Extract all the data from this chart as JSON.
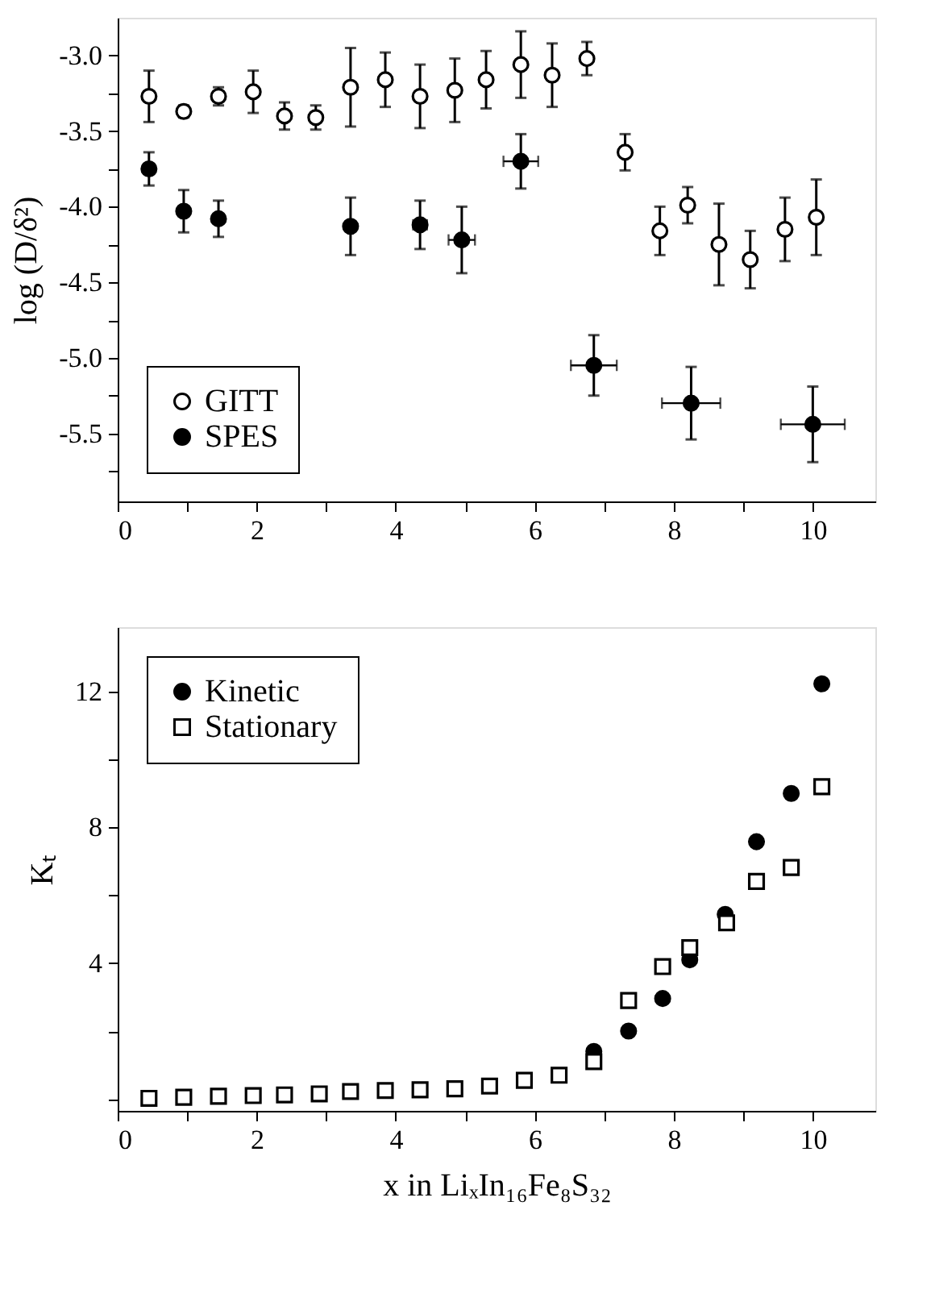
{
  "chart_data": [
    {
      "type": "scatter",
      "ylabel": "log (D/δ²)",
      "xlim": [
        0,
        10.9
      ],
      "ylim": [
        -5.95,
        -2.75
      ],
      "xticks": [
        0,
        {
          "value": 1,
          "label": null
        },
        2,
        {
          "value": 3,
          "label": null
        },
        4,
        {
          "value": 5,
          "label": null
        },
        6,
        {
          "value": 7,
          "label": null
        },
        8,
        {
          "value": 9,
          "label": null
        },
        10
      ],
      "yticks": [
        {
          "value": -3,
          "label": "-3.0"
        },
        {
          "value": -3.25,
          "label": null
        },
        {
          "value": -3.5,
          "label": "-3.5"
        },
        {
          "value": -3.75,
          "label": null
        },
        {
          "value": -4,
          "label": "-4.0"
        },
        {
          "value": -4.25,
          "label": null
        },
        {
          "value": -4.5,
          "label": "-4.5"
        },
        {
          "value": -4.75,
          "label": null
        },
        {
          "value": -5,
          "label": "-5.0"
        },
        {
          "value": -5.25,
          "label": null
        },
        {
          "value": -5.5,
          "label": "-5.5"
        },
        {
          "value": -5.75,
          "label": null
        }
      ],
      "legend": "bottom left",
      "grid": false,
      "series": [
        {
          "name": "GITT",
          "color": "#000000",
          "marker": "circle",
          "x": [
            0.45,
            0.95,
            1.45,
            1.95,
            2.4,
            2.85,
            3.35,
            3.85,
            4.35,
            4.85,
            5.3,
            5.8,
            6.25,
            6.75,
            7.3,
            7.8,
            8.2,
            8.65,
            9.1,
            9.6,
            10.05
          ],
          "values": [
            -3.27,
            -3.37,
            -3.27,
            -3.24,
            -3.4,
            -3.41,
            -3.21,
            -3.16,
            -3.27,
            -3.23,
            -3.16,
            -3.06,
            -3.13,
            -3.02,
            -3.64,
            -4.16,
            -3.99,
            -4.25,
            -4.35,
            -4.15,
            -4.07
          ],
          "errors": [
            0.17,
            0.04,
            0.06,
            0.14,
            0.09,
            0.08,
            0.26,
            0.18,
            0.21,
            0.21,
            0.19,
            0.22,
            0.21,
            0.11,
            0.12,
            0.16,
            0.12,
            0.27,
            0.19,
            0.21,
            0.25
          ]
        },
        {
          "name": "SPES",
          "color": "#000000",
          "marker": "circle",
          "x": [
            0.45,
            0.95,
            1.45,
            3.35,
            4.35,
            4.95,
            5.8,
            6.85,
            8.25,
            10.0
          ],
          "values": [
            -3.75,
            -4.03,
            -4.08,
            -4.13,
            -4.12,
            -4.22,
            -3.7,
            -5.05,
            -5.3,
            -5.44
          ],
          "errors": [
            0.11,
            0.14,
            0.12,
            0.19,
            0.16,
            0.22,
            0.18,
            0.2,
            0.24,
            0.25
          ],
          "xerrors": [
            null,
            null,
            null,
            null,
            0.1,
            0.19,
            0.25,
            0.33,
            0.42,
            0.46
          ]
        }
      ]
    },
    {
      "type": "scatter",
      "xlabel": "x in LiₓIn₁₆Fe₈S₃₂",
      "ylabel": "Kₜ",
      "xlim": [
        0,
        10.9
      ],
      "ylim": [
        -0.35,
        13.9
      ],
      "xticks": [
        0,
        {
          "value": 1,
          "label": null
        },
        2,
        {
          "value": 3,
          "label": null
        },
        4,
        {
          "value": 5,
          "label": null
        },
        6,
        {
          "value": 7,
          "label": null
        },
        8,
        {
          "value": 9,
          "label": null
        },
        10
      ],
      "yticks": [
        {
          "value": 0,
          "label": null
        },
        {
          "value": 2,
          "label": null
        },
        4,
        {
          "value": 6,
          "label": null
        },
        8,
        {
          "value": 10,
          "label": null
        },
        12
      ],
      "legend": "top left",
      "grid": false,
      "series": [
        {
          "name": "Kinetic",
          "color": "#000000",
          "marker": "circle",
          "x": [
            6.85,
            7.35,
            7.84,
            8.23,
            8.74,
            9.19,
            9.69,
            10.13
          ],
          "values": [
            1.4,
            2.0,
            2.96,
            4.1,
            5.44,
            7.58,
            9.0,
            12.23
          ]
        },
        {
          "name": "Stationary",
          "color": "#000000",
          "marker": "square",
          "x": [
            0.45,
            0.95,
            1.45,
            1.95,
            2.4,
            2.9,
            3.35,
            3.85,
            4.35,
            4.85,
            5.35,
            5.85,
            6.35,
            6.85,
            7.35,
            7.84,
            8.23,
            8.76,
            9.19,
            9.69,
            10.13
          ],
          "values": [
            0.02,
            0.05,
            0.08,
            0.1,
            0.12,
            0.15,
            0.22,
            0.25,
            0.27,
            0.3,
            0.38,
            0.55,
            0.7,
            1.1,
            2.9,
            3.9,
            4.46,
            5.19,
            6.41,
            6.82,
            9.2
          ]
        }
      ]
    }
  ]
}
